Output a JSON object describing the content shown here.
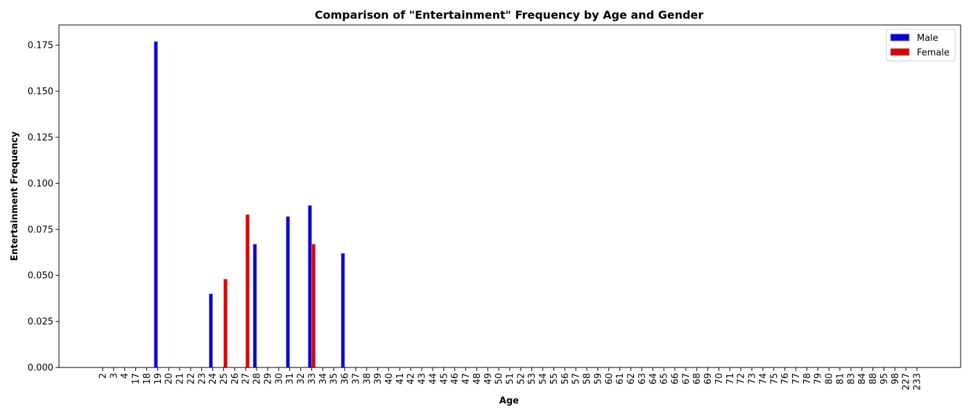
{
  "chart_data": {
    "type": "bar",
    "title": "Comparison of \"Entertainment\" Frequency by Age and Gender",
    "xlabel": "Age",
    "ylabel": "Entertainment Frequency",
    "categories": [
      "2",
      "3",
      "4",
      "17",
      "18",
      "19",
      "20",
      "21",
      "22",
      "23",
      "24",
      "25",
      "26",
      "27",
      "28",
      "29",
      "30",
      "31",
      "32",
      "33",
      "34",
      "35",
      "36",
      "37",
      "38",
      "39",
      "40",
      "41",
      "42",
      "43",
      "44",
      "45",
      "46",
      "47",
      "48",
      "49",
      "50",
      "51",
      "52",
      "53",
      "54",
      "55",
      "56",
      "57",
      "58",
      "59",
      "60",
      "61",
      "62",
      "63",
      "64",
      "65",
      "66",
      "67",
      "68",
      "69",
      "70",
      "71",
      "72",
      "73",
      "74",
      "75",
      "76",
      "77",
      "78",
      "79",
      "80",
      "81",
      "83",
      "84",
      "88",
      "95",
      "98",
      "227",
      "233"
    ],
    "yticks": [
      "0.000",
      "0.025",
      "0.050",
      "0.075",
      "0.100",
      "0.125",
      "0.150",
      "0.175"
    ],
    "ylim": [
      0,
      0.186
    ],
    "grid": false,
    "legend_position": "top-right",
    "series": [
      {
        "name": "Male",
        "color": "#0000dd",
        "values": [
          0,
          0,
          0,
          0,
          0,
          0.177,
          0,
          0,
          0,
          0,
          0.04,
          0,
          0,
          0,
          0.067,
          0,
          0,
          0.082,
          0,
          0.088,
          0,
          0,
          0.062,
          0,
          0,
          0,
          0,
          0,
          0,
          0,
          0,
          0,
          0,
          0,
          0,
          0,
          0,
          0,
          0,
          0,
          0,
          0,
          0,
          0,
          0,
          0,
          0,
          0,
          0,
          0,
          0,
          0,
          0,
          0,
          0,
          0,
          0,
          0,
          0,
          0,
          0,
          0,
          0,
          0,
          0,
          0,
          0,
          0,
          0,
          0,
          0,
          0,
          0,
          0,
          0
        ]
      },
      {
        "name": "Female",
        "color": "#dd0000",
        "values": [
          0,
          0,
          0,
          0,
          0,
          0,
          0,
          0,
          0,
          0,
          0,
          0.048,
          0,
          0.083,
          0,
          0,
          0,
          0,
          0,
          0.067,
          0,
          0,
          0,
          0,
          0,
          0,
          0,
          0,
          0,
          0,
          0,
          0,
          0,
          0,
          0,
          0,
          0,
          0,
          0,
          0,
          0,
          0,
          0,
          0,
          0,
          0,
          0,
          0,
          0,
          0,
          0,
          0,
          0,
          0,
          0,
          0,
          0,
          0,
          0,
          0,
          0,
          0,
          0,
          0,
          0,
          0,
          0,
          0,
          0,
          0,
          0,
          0,
          0,
          0,
          0
        ]
      }
    ]
  }
}
